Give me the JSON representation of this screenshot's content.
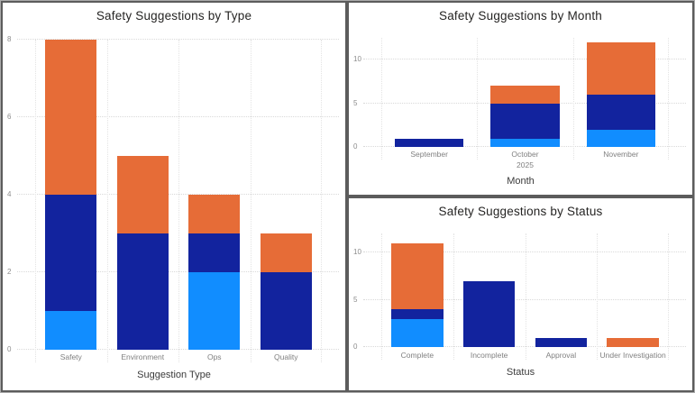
{
  "palette": {
    "light_blue": "#118DFF",
    "dark_blue": "#12239E",
    "orange": "#E66C37"
  },
  "chart_data": [
    {
      "type": "bar",
      "stacked": true,
      "title": "Safety Suggestions by Type",
      "xlabel": "Suggestion Type",
      "ylabel": "",
      "categories": [
        "Safety",
        "Environment",
        "Ops",
        "Quality"
      ],
      "sublabels": [
        "",
        "",
        "",
        ""
      ],
      "series": [
        {
          "name": "light-blue",
          "color": "#118DFF",
          "values": [
            1,
            0,
            2,
            0
          ]
        },
        {
          "name": "dark-blue",
          "color": "#12239E",
          "values": [
            3,
            3,
            1,
            2
          ]
        },
        {
          "name": "orange",
          "color": "#E66C37",
          "values": [
            4,
            2,
            1,
            1
          ]
        }
      ],
      "totals": [
        8,
        5,
        4,
        3
      ],
      "yticks": [
        0,
        2,
        4,
        6,
        8
      ],
      "ylim": [
        0,
        8
      ],
      "grid": "dotted",
      "legend": "none"
    },
    {
      "type": "bar",
      "stacked": true,
      "title": "Safety Suggestions by Month",
      "xlabel": "Month",
      "ylabel": "",
      "categories": [
        "September",
        "October",
        "November"
      ],
      "sublabels": [
        "",
        "2025",
        ""
      ],
      "series": [
        {
          "name": "light-blue",
          "color": "#118DFF",
          "values": [
            0,
            1,
            2
          ]
        },
        {
          "name": "dark-blue",
          "color": "#12239E",
          "values": [
            1,
            4,
            4
          ]
        },
        {
          "name": "orange",
          "color": "#E66C37",
          "values": [
            0,
            2,
            6
          ]
        }
      ],
      "totals": [
        1,
        7,
        12
      ],
      "yticks": [
        0,
        5,
        10
      ],
      "ylim": [
        0,
        12.5
      ],
      "grid": "dotted",
      "legend": "none"
    },
    {
      "type": "bar",
      "stacked": true,
      "title": "Safety Suggestions by Status",
      "xlabel": "Status",
      "ylabel": "",
      "categories": [
        "Complete",
        "Incomplete",
        "Approval",
        "Under Investigation"
      ],
      "sublabels": [
        "",
        "",
        "",
        ""
      ],
      "series": [
        {
          "name": "light-blue",
          "color": "#118DFF",
          "values": [
            3,
            0,
            0,
            0
          ]
        },
        {
          "name": "dark-blue",
          "color": "#12239E",
          "values": [
            1,
            7,
            1,
            0
          ]
        },
        {
          "name": "orange",
          "color": "#E66C37",
          "values": [
            7,
            0,
            0,
            1
          ]
        }
      ],
      "totals": [
        11,
        7,
        1,
        1
      ],
      "yticks": [
        0,
        5,
        10
      ],
      "ylim": [
        0,
        12
      ],
      "grid": "dotted",
      "legend": "none"
    }
  ]
}
